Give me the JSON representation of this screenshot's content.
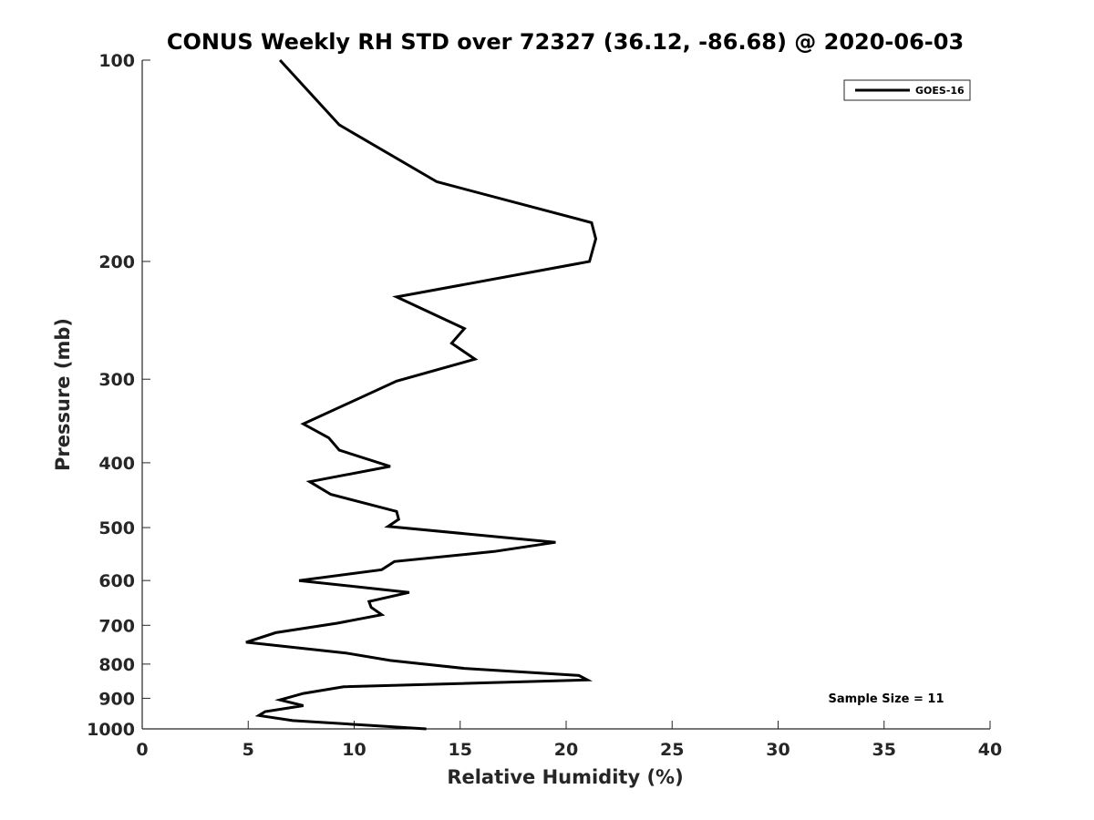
{
  "chart_data": {
    "type": "line",
    "title": "CONUS Weekly RH STD over 72327 (36.12, -86.68) @ 2020-06-03",
    "xlabel": "Relative Humidity (%)",
    "ylabel": "Pressure (mb)",
    "xlim": [
      0,
      40
    ],
    "ylim": [
      100,
      1000
    ],
    "y_scale": "log",
    "y_reversed": true,
    "x_ticks": [
      0,
      5,
      10,
      15,
      20,
      25,
      30,
      35,
      40
    ],
    "y_ticks": [
      100,
      200,
      300,
      400,
      500,
      600,
      700,
      800,
      900,
      1000
    ],
    "grid": false,
    "legend_position": "top-right",
    "series": [
      {
        "name": "GOES-16",
        "color": "#000000",
        "points": [
          [
            6.5,
            100
          ],
          [
            9.3,
            125
          ],
          [
            13.9,
            152
          ],
          [
            21.2,
            175
          ],
          [
            21.4,
            185
          ],
          [
            21.1,
            200
          ],
          [
            12.0,
            226
          ],
          [
            15.2,
            252
          ],
          [
            14.6,
            265
          ],
          [
            15.7,
            280
          ],
          [
            12.0,
            302
          ],
          [
            7.6,
            350
          ],
          [
            8.8,
            367
          ],
          [
            9.3,
            383
          ],
          [
            11.7,
            405
          ],
          [
            7.9,
            427
          ],
          [
            8.9,
            446
          ],
          [
            12.0,
            473
          ],
          [
            12.1,
            486
          ],
          [
            11.6,
            498
          ],
          [
            19.5,
            526
          ],
          [
            16.6,
            543
          ],
          [
            11.9,
            562
          ],
          [
            11.3,
            578
          ],
          [
            7.4,
            600
          ],
          [
            12.6,
            625
          ],
          [
            10.7,
            645
          ],
          [
            10.8,
            658
          ],
          [
            11.3,
            675
          ],
          [
            9.2,
            695
          ],
          [
            6.3,
            718
          ],
          [
            4.9,
            742
          ],
          [
            9.6,
            770
          ],
          [
            11.7,
            790
          ],
          [
            15.2,
            812
          ],
          [
            20.6,
            832
          ],
          [
            21.0,
            845
          ],
          [
            9.5,
            865
          ],
          [
            7.6,
            885
          ],
          [
            6.5,
            905
          ],
          [
            7.6,
            923
          ],
          [
            5.8,
            942
          ],
          [
            5.5,
            955
          ],
          [
            7.1,
            972
          ],
          [
            13.4,
            1000
          ]
        ]
      }
    ],
    "annotations": [
      {
        "text": "Sample Size = 11"
      }
    ]
  }
}
